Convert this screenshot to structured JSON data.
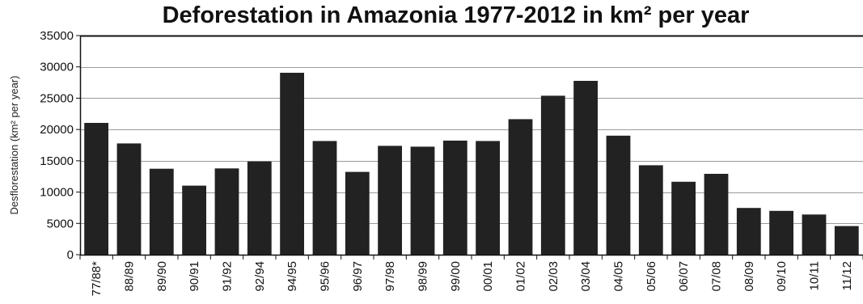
{
  "chart_data": {
    "type": "bar",
    "title": "Deforestation in Amazonia 1977-2012 in km² per year",
    "xlabel": "",
    "ylabel": "Desflorestation (km² per year)",
    "ylim": [
      0,
      35000
    ],
    "yticks": [
      0,
      5000,
      10000,
      15000,
      20000,
      25000,
      30000,
      35000
    ],
    "grid": "horizontal",
    "legend": "none",
    "bar_color": "#222222",
    "grid_color": "#9a9a9a",
    "categories": [
      "77/88*",
      "88/89",
      "89/90",
      "90/91",
      "91/92",
      "92/94",
      "94/95",
      "95/96",
      "96/97",
      "97/98",
      "98/99",
      "99/00",
      "00/01",
      "01/02",
      "02/03",
      "03/04",
      "04/05",
      "05/06",
      "06/07",
      "07/08",
      "08/09",
      "09/10",
      "10/11",
      "11/12"
    ],
    "values": [
      21050,
      17770,
      13730,
      11030,
      13786,
      14896,
      29059,
      18161,
      13227,
      17383,
      17259,
      18226,
      18165,
      21651,
      25396,
      27772,
      19014,
      14286,
      11651,
      12911,
      7464,
      7000,
      6418,
      4571
    ]
  }
}
